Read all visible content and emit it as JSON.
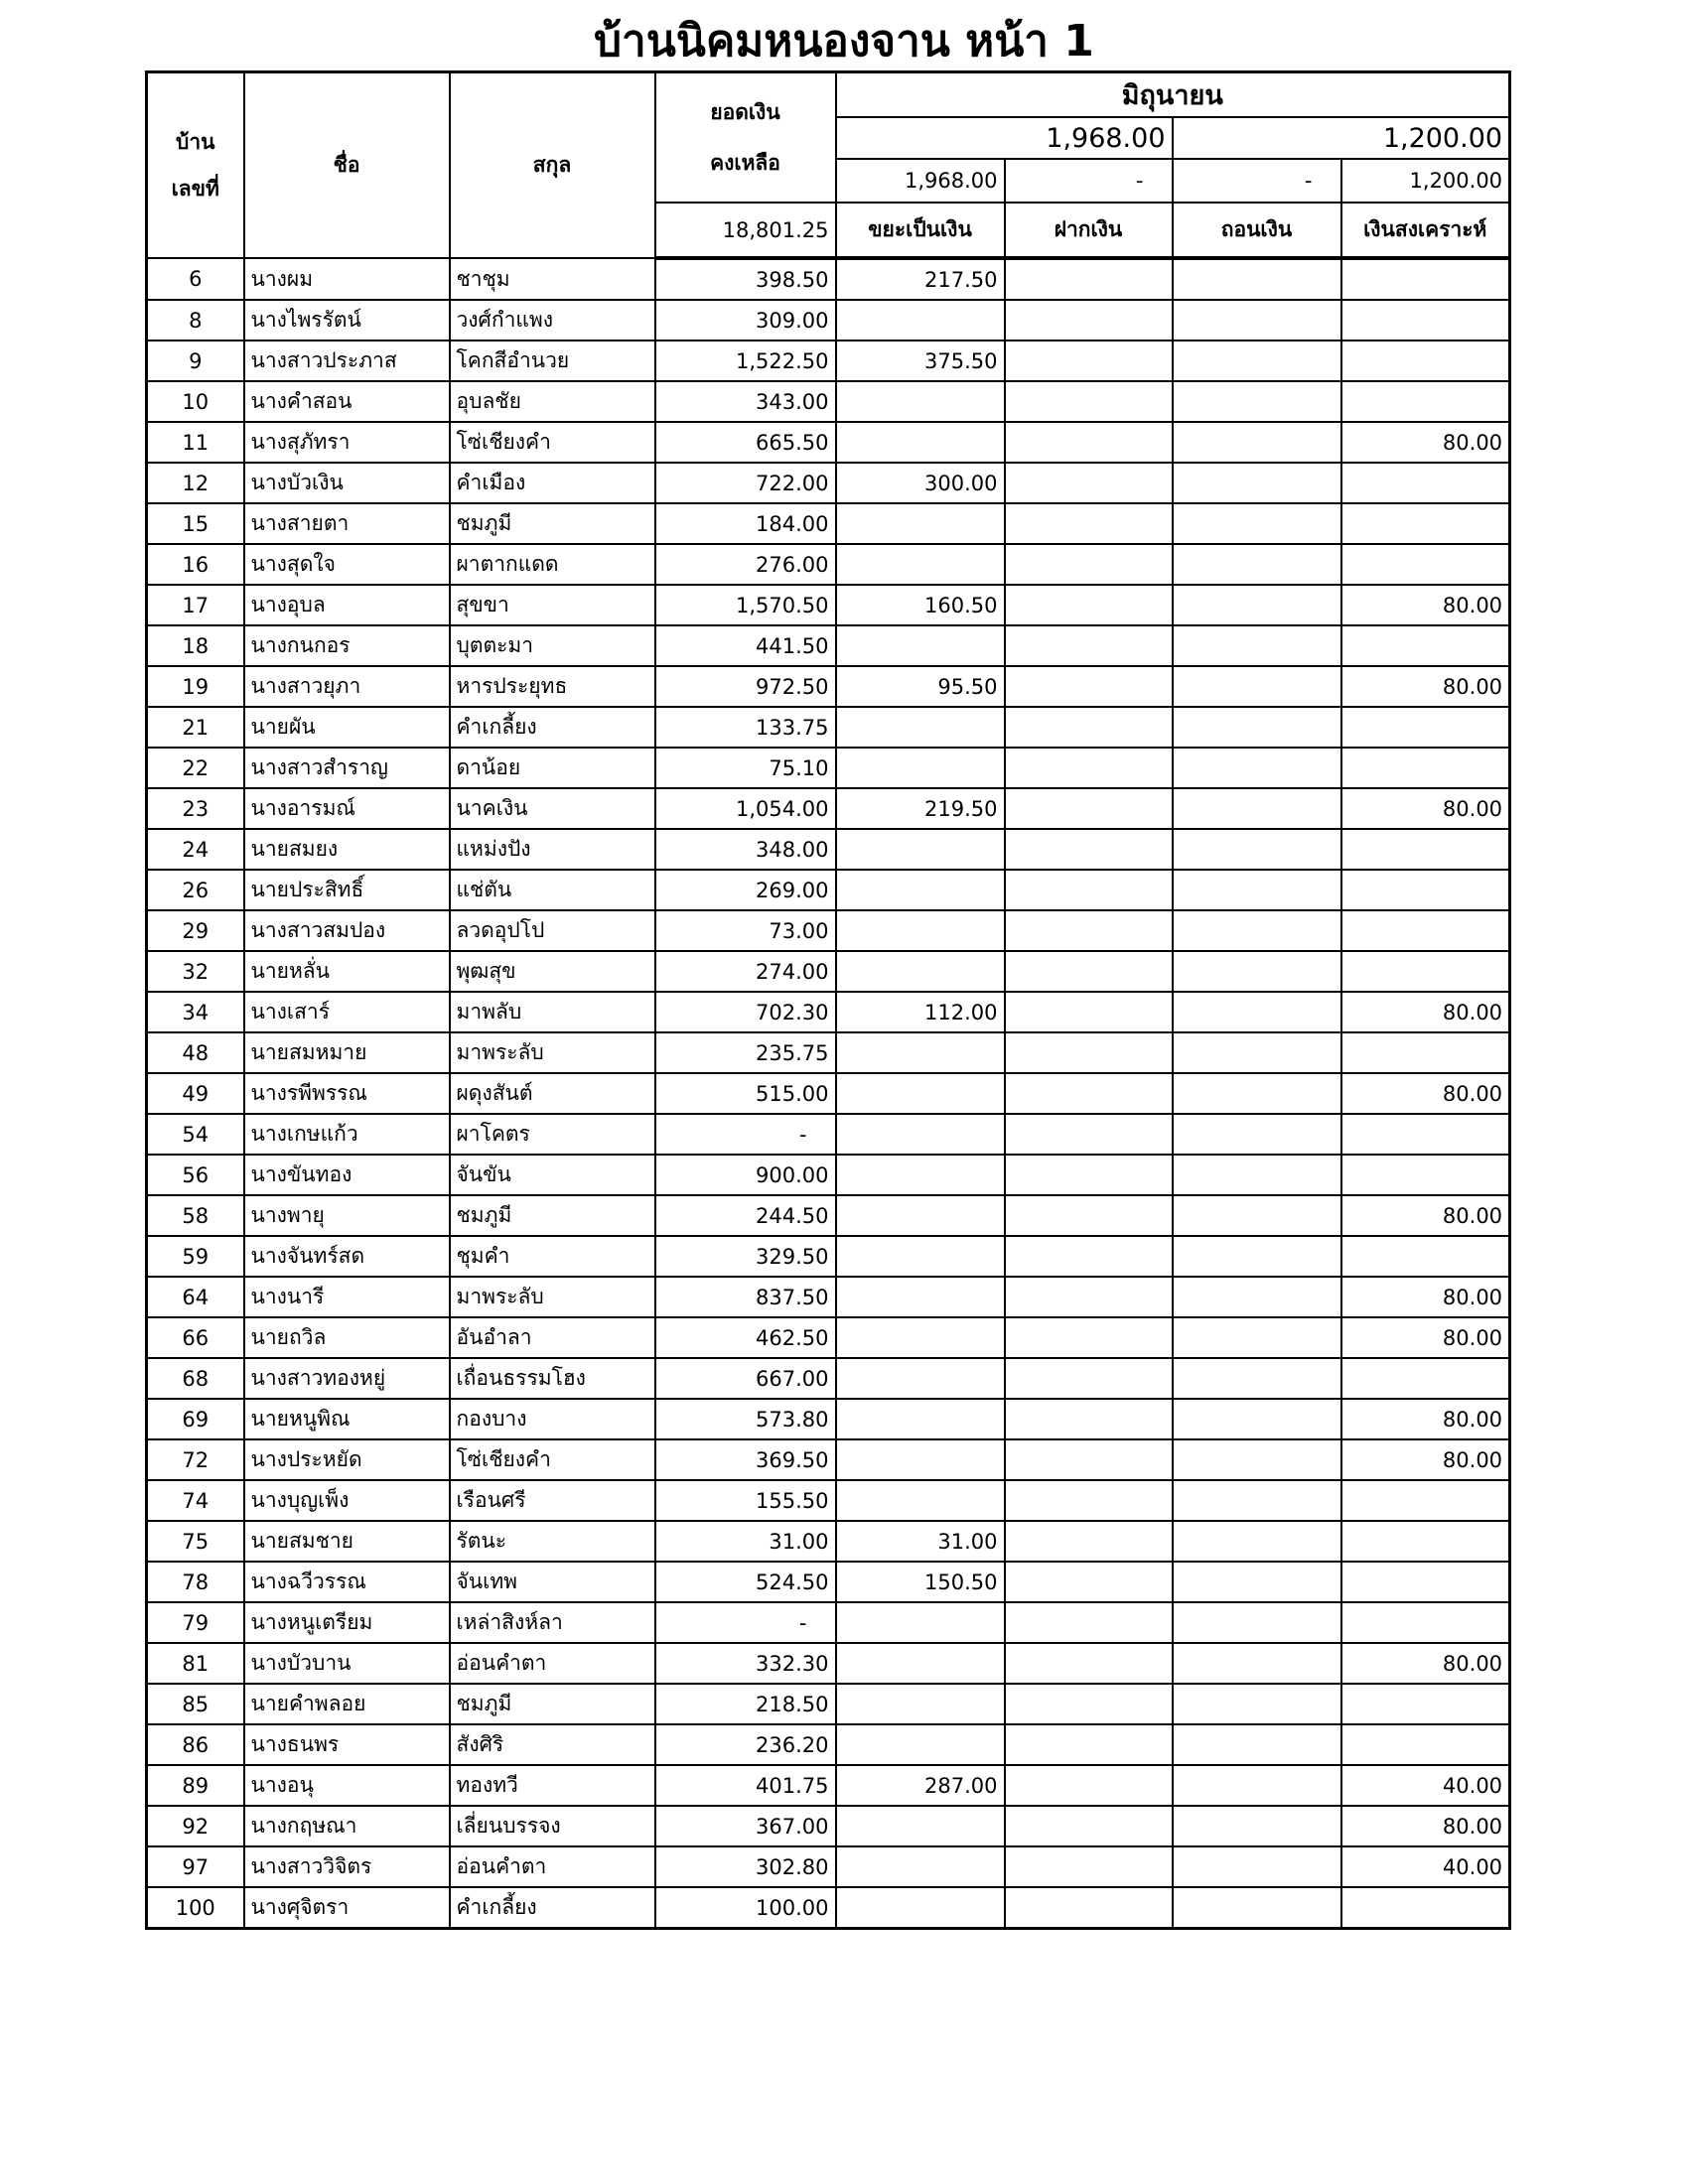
{
  "title": "บ้านนิคมหนองจาน หน้า 1",
  "header": {
    "house_no": "บ้าน\nเลขที่",
    "house_no_1": "บ้าน",
    "house_no_2": "เลขที่",
    "name": "ชื่อ",
    "surname": "สกุล",
    "balance_1": "ยอดเงิน",
    "balance_2": "คงเหลือ",
    "balance_total": "18,801.25",
    "month": "มิถุนายน",
    "group_total_1": "1,968.00",
    "group_total_2": "1,200.00",
    "col_totals": [
      "1,968.00",
      "-",
      "-",
      "1,200.00"
    ],
    "col_labels": [
      "ขยะเป็นเงิน",
      "ฝากเงิน",
      "ถอนเงิน",
      "เงินสงเคราะห์"
    ]
  },
  "rows": [
    [
      "6",
      "นางผม",
      "ชาชุม",
      "398.50",
      "217.50",
      "",
      "",
      ""
    ],
    [
      "8",
      "นางไพรรัตน์",
      "วงศ์กำแพง",
      "309.00",
      "",
      "",
      "",
      ""
    ],
    [
      "9",
      "นางสาวประภาส",
      "โคกสีอำนวย",
      "1,522.50",
      "375.50",
      "",
      "",
      ""
    ],
    [
      "10",
      "นางคำสอน",
      "อุบลชัย",
      "343.00",
      "",
      "",
      "",
      ""
    ],
    [
      "11",
      "นางสุภัทรา",
      "โซ่เชียงคำ",
      "665.50",
      "",
      "",
      "",
      "80.00"
    ],
    [
      "12",
      "นางบัวเงิน",
      "คำเมือง",
      "722.00",
      "300.00",
      "",
      "",
      ""
    ],
    [
      "15",
      "นางสายตา",
      "ชมภูมี",
      "184.00",
      "",
      "",
      "",
      ""
    ],
    [
      "16",
      "นางสุดใจ",
      "ผาตากแดด",
      "276.00",
      "",
      "",
      "",
      ""
    ],
    [
      "17",
      "นางอุบล",
      "สุขขา",
      "1,570.50",
      "160.50",
      "",
      "",
      "80.00"
    ],
    [
      "18",
      "นางกนกอร",
      "บุตตะมา",
      "441.50",
      "",
      "",
      "",
      ""
    ],
    [
      "19",
      "นางสาวยุภา",
      "หารประยุทธ",
      "972.50",
      "95.50",
      "",
      "",
      "80.00"
    ],
    [
      "21",
      "นายผัน",
      "คำเกลี้ยง",
      "133.75",
      "",
      "",
      "",
      ""
    ],
    [
      "22",
      "นางสาวสำราญ",
      "ดาน้อย",
      "75.10",
      "",
      "",
      "",
      ""
    ],
    [
      "23",
      "นางอารมณ์",
      "นาคเงิน",
      "1,054.00",
      "219.50",
      "",
      "",
      "80.00"
    ],
    [
      "24",
      "นายสมยง",
      "แหม่งปัง",
      "348.00",
      "",
      "",
      "",
      ""
    ],
    [
      "26",
      "นายประสิทธิ์",
      "แช่ตัน",
      "269.00",
      "",
      "",
      "",
      ""
    ],
    [
      "29",
      "นางสาวสมปอง",
      "ลวดอุปโป",
      "73.00",
      "",
      "",
      "",
      ""
    ],
    [
      "32",
      "นายหลั่น",
      "พุฒสุข",
      "274.00",
      "",
      "",
      "",
      ""
    ],
    [
      "34",
      "นางเสาร์",
      "มาพลับ",
      "702.30",
      "112.00",
      "",
      "",
      "80.00"
    ],
    [
      "48",
      "นายสมหมาย",
      "มาพระลับ",
      "235.75",
      "",
      "",
      "",
      ""
    ],
    [
      "49",
      "นางรพีพรรณ",
      "ผดุงสันต์",
      "515.00",
      "",
      "",
      "",
      "80.00"
    ],
    [
      "54",
      "นางเกษแก้ว",
      "ผาโคตร",
      "-",
      "",
      "",
      "",
      ""
    ],
    [
      "56",
      "นางขันทอง",
      "จันขัน",
      "900.00",
      "",
      "",
      "",
      ""
    ],
    [
      "58",
      "นางพายุ",
      "ชมภูมี",
      "244.50",
      "",
      "",
      "",
      "80.00"
    ],
    [
      "59",
      "นางจันทร์สด",
      "ชุมคำ",
      "329.50",
      "",
      "",
      "",
      ""
    ],
    [
      "64",
      "นางนารี",
      "มาพระลับ",
      "837.50",
      "",
      "",
      "",
      "80.00"
    ],
    [
      "66",
      "นายถวิล",
      "อันอำลา",
      "462.50",
      "",
      "",
      "",
      "80.00"
    ],
    [
      "68",
      "นางสาวทองหยู่",
      "เถื่อนธรรมโฮง",
      "667.00",
      "",
      "",
      "",
      ""
    ],
    [
      "69",
      "นายหนูพิณ",
      "กองบาง",
      "573.80",
      "",
      "",
      "",
      "80.00"
    ],
    [
      "72",
      "นางประหยัด",
      "โซ่เชียงคำ",
      "369.50",
      "",
      "",
      "",
      "80.00"
    ],
    [
      "74",
      "นางบุญเพ็ง",
      "เรือนศรี",
      "155.50",
      "",
      "",
      "",
      ""
    ],
    [
      "75",
      "นายสมชาย",
      "รัตนะ",
      "31.00",
      "31.00",
      "",
      "",
      ""
    ],
    [
      "78",
      "นางฉวีวรรณ",
      "จันเทพ",
      "524.50",
      "150.50",
      "",
      "",
      ""
    ],
    [
      "79",
      "นางหนูเตรียม",
      "เหล่าสิงห์ลา",
      "-",
      "",
      "",
      "",
      ""
    ],
    [
      "81",
      "นางบัวบาน",
      "อ่อนคำตา",
      "332.30",
      "",
      "",
      "",
      "80.00"
    ],
    [
      "85",
      "นายคำพลอย",
      "ชมภูมี",
      "218.50",
      "",
      "",
      "",
      ""
    ],
    [
      "86",
      "นางธนพร",
      "สังศิริ",
      "236.20",
      "",
      "",
      "",
      ""
    ],
    [
      "89",
      "นางอนุ",
      "ทองทวี",
      "401.75",
      "287.00",
      "",
      "",
      "40.00"
    ],
    [
      "92",
      "นางกฤษณา",
      "เลี่ยนบรรจง",
      "367.00",
      "",
      "",
      "",
      "80.00"
    ],
    [
      "97",
      "นางสาววิจิตร",
      "อ่อนคำตา",
      "302.80",
      "",
      "",
      "",
      "40.00"
    ],
    [
      "100",
      "นางศุจิตรา",
      "คำเกลี้ยง",
      "100.00",
      "",
      "",
      "",
      ""
    ]
  ]
}
